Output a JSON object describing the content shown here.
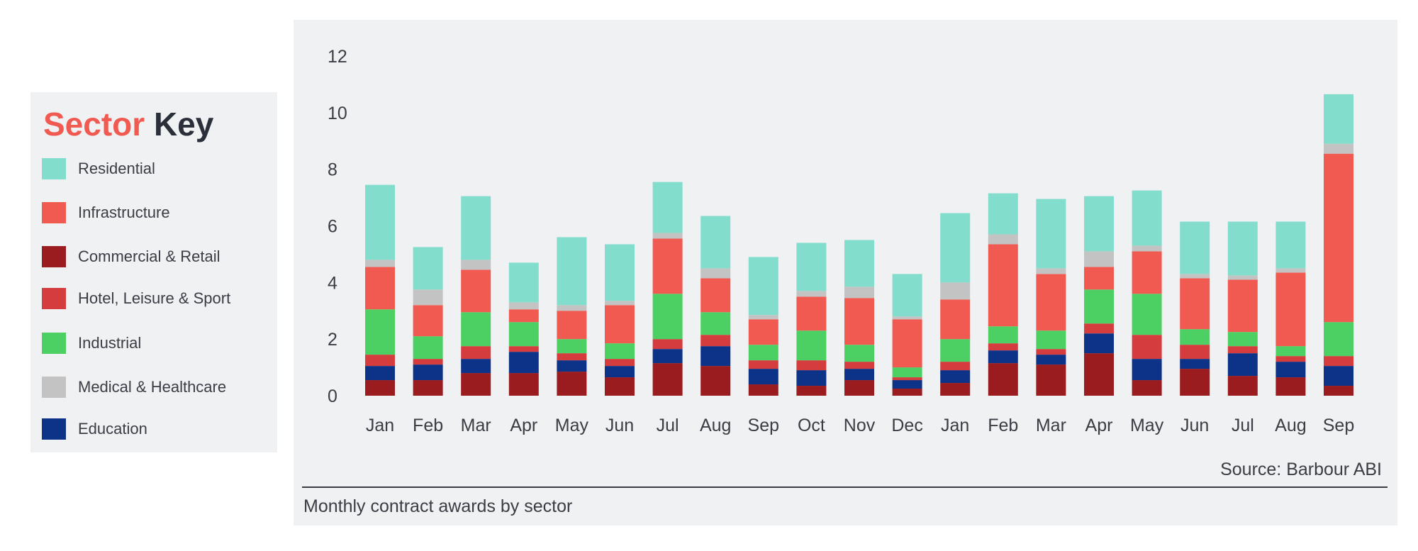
{
  "legend": {
    "title_word1": "Sector",
    "title_word2": "Key",
    "items": [
      {
        "label": "Residential",
        "color": "#83ddcc"
      },
      {
        "label": "Infrastructure",
        "color": "#f05a50"
      },
      {
        "label": "Commercial & Retail",
        "color": "#9a1c1e"
      },
      {
        "label": "Hotel, Leisure & Sport",
        "color": "#d43c3e"
      },
      {
        "label": "Industrial",
        "color": "#4dd063"
      },
      {
        "label": "Medical & Healthcare",
        "color": "#c3c3c3"
      },
      {
        "label": "Education",
        "color": "#0d3388"
      }
    ]
  },
  "source": "Source: Barbour ABI",
  "caption": "Monthly contract awards by sector",
  "chart_data": {
    "type": "bar",
    "stacked": true,
    "title": "",
    "xlabel": "",
    "ylabel": "",
    "ylim": [
      0,
      12
    ],
    "yticks": [
      0,
      2,
      4,
      6,
      8,
      10,
      12
    ],
    "grid": false,
    "legend_position": "left, outside chart",
    "categories": [
      "Jan",
      "Feb",
      "Mar",
      "Apr",
      "May",
      "Jun",
      "Jul",
      "Aug",
      "Sep",
      "Oct",
      "Nov",
      "Dec",
      "Jan",
      "Feb",
      "Mar",
      "Apr",
      "May",
      "Jun",
      "Jul",
      "Aug",
      "Sep"
    ],
    "series": [
      {
        "name": "Commercial & Retail",
        "color": "#9a1c1e",
        "values": [
          0.55,
          0.55,
          0.8,
          0.8,
          0.85,
          0.65,
          1.15,
          1.05,
          0.4,
          0.35,
          0.55,
          0.25,
          0.45,
          1.15,
          1.1,
          1.5,
          0.55,
          0.95,
          0.7,
          0.65,
          0.35
        ]
      },
      {
        "name": "Education",
        "color": "#0d3388",
        "values": [
          0.5,
          0.55,
          0.5,
          0.75,
          0.4,
          0.4,
          0.5,
          0.7,
          0.55,
          0.55,
          0.4,
          0.3,
          0.45,
          0.45,
          0.35,
          0.7,
          0.75,
          0.35,
          0.8,
          0.55,
          0.7
        ]
      },
      {
        "name": "Hotel, Leisure & Sport",
        "color": "#d43c3e",
        "values": [
          0.4,
          0.2,
          0.45,
          0.2,
          0.25,
          0.25,
          0.35,
          0.4,
          0.3,
          0.35,
          0.25,
          0.1,
          0.3,
          0.25,
          0.2,
          0.35,
          0.85,
          0.5,
          0.25,
          0.2,
          0.35
        ]
      },
      {
        "name": "Industrial",
        "color": "#4dd063",
        "values": [
          1.6,
          0.8,
          1.2,
          0.85,
          0.5,
          0.55,
          1.6,
          0.8,
          0.55,
          1.05,
          0.6,
          0.35,
          0.8,
          0.6,
          0.65,
          1.2,
          1.45,
          0.55,
          0.5,
          0.35,
          1.2
        ]
      },
      {
        "name": "Infrastructure",
        "color": "#f05a50",
        "values": [
          1.5,
          1.1,
          1.5,
          0.45,
          1.0,
          1.35,
          1.95,
          1.2,
          0.9,
          1.2,
          1.65,
          1.7,
          1.4,
          2.9,
          2.0,
          0.8,
          1.5,
          1.8,
          1.85,
          2.6,
          5.95
        ]
      },
      {
        "name": "Medical & Healthcare",
        "color": "#c3c3c3",
        "values": [
          0.25,
          0.55,
          0.35,
          0.25,
          0.2,
          0.15,
          0.2,
          0.35,
          0.15,
          0.2,
          0.4,
          0.1,
          0.6,
          0.35,
          0.2,
          0.55,
          0.2,
          0.15,
          0.15,
          0.15,
          0.35
        ]
      },
      {
        "name": "Residential",
        "color": "#83ddcc",
        "values": [
          2.65,
          1.5,
          2.25,
          1.4,
          2.4,
          2.0,
          1.8,
          1.85,
          2.05,
          1.7,
          1.65,
          1.5,
          2.45,
          1.45,
          2.45,
          1.95,
          1.95,
          1.85,
          1.9,
          1.65,
          1.75
        ]
      }
    ]
  }
}
